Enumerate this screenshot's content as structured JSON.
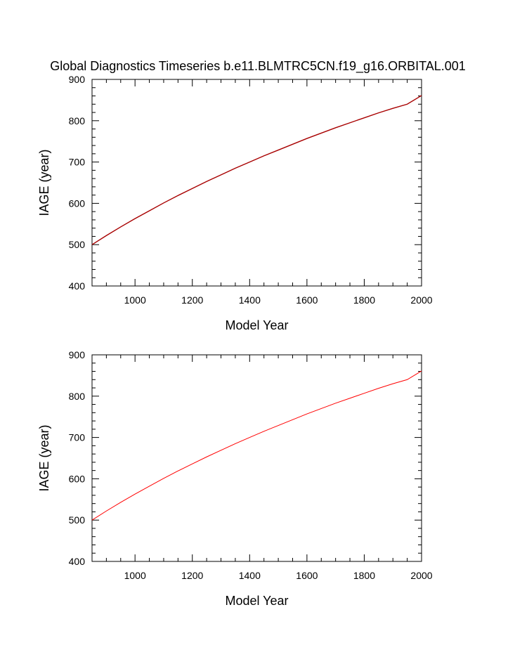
{
  "title": "Global Diagnostics Timeseries b.e11.BLMTRC5CN.f19_g16.ORBITAL.001",
  "colors": {
    "top_series": "#a80000",
    "bottom_series": "#ff0000"
  },
  "chart_data": [
    {
      "type": "line",
      "xlabel": "Model Year",
      "ylabel": "IAGE (year)",
      "xlim": [
        850,
        2000
      ],
      "ylim": [
        400,
        900
      ],
      "xticks": [
        "1000",
        "1200",
        "1400",
        "1600",
        "1800",
        "2000"
      ],
      "yticks": [
        "400",
        "500",
        "600",
        "700",
        "800",
        "900"
      ],
      "series": [
        {
          "color": "#a80000",
          "x": [
            850,
            900,
            950,
            1000,
            1050,
            1100,
            1150,
            1200,
            1250,
            1300,
            1350,
            1400,
            1450,
            1500,
            1550,
            1600,
            1650,
            1700,
            1750,
            1800,
            1850,
            1900,
            1950,
            2000
          ],
          "y": [
            500,
            522,
            543,
            563,
            582,
            601,
            619,
            636,
            653,
            669,
            685,
            700,
            715,
            729,
            743,
            757,
            770,
            783,
            795,
            807,
            819,
            830,
            840,
            861
          ]
        }
      ]
    },
    {
      "type": "line",
      "xlabel": "Model Year",
      "ylabel": "IAGE (year)",
      "xlim": [
        850,
        2000
      ],
      "ylim": [
        400,
        900
      ],
      "xticks": [
        "1000",
        "1200",
        "1400",
        "1600",
        "1800",
        "2000"
      ],
      "yticks": [
        "400",
        "500",
        "600",
        "700",
        "800",
        "900"
      ],
      "series": [
        {
          "color": "#ff0000",
          "x": [
            850,
            900,
            950,
            1000,
            1050,
            1100,
            1150,
            1200,
            1250,
            1300,
            1350,
            1400,
            1450,
            1500,
            1550,
            1600,
            1650,
            1700,
            1750,
            1800,
            1850,
            1900,
            1950,
            2000
          ],
          "y": [
            500,
            522,
            543,
            563,
            582,
            601,
            619,
            636,
            653,
            669,
            685,
            700,
            715,
            729,
            743,
            757,
            770,
            783,
            795,
            807,
            819,
            830,
            840,
            861
          ]
        }
      ]
    }
  ]
}
